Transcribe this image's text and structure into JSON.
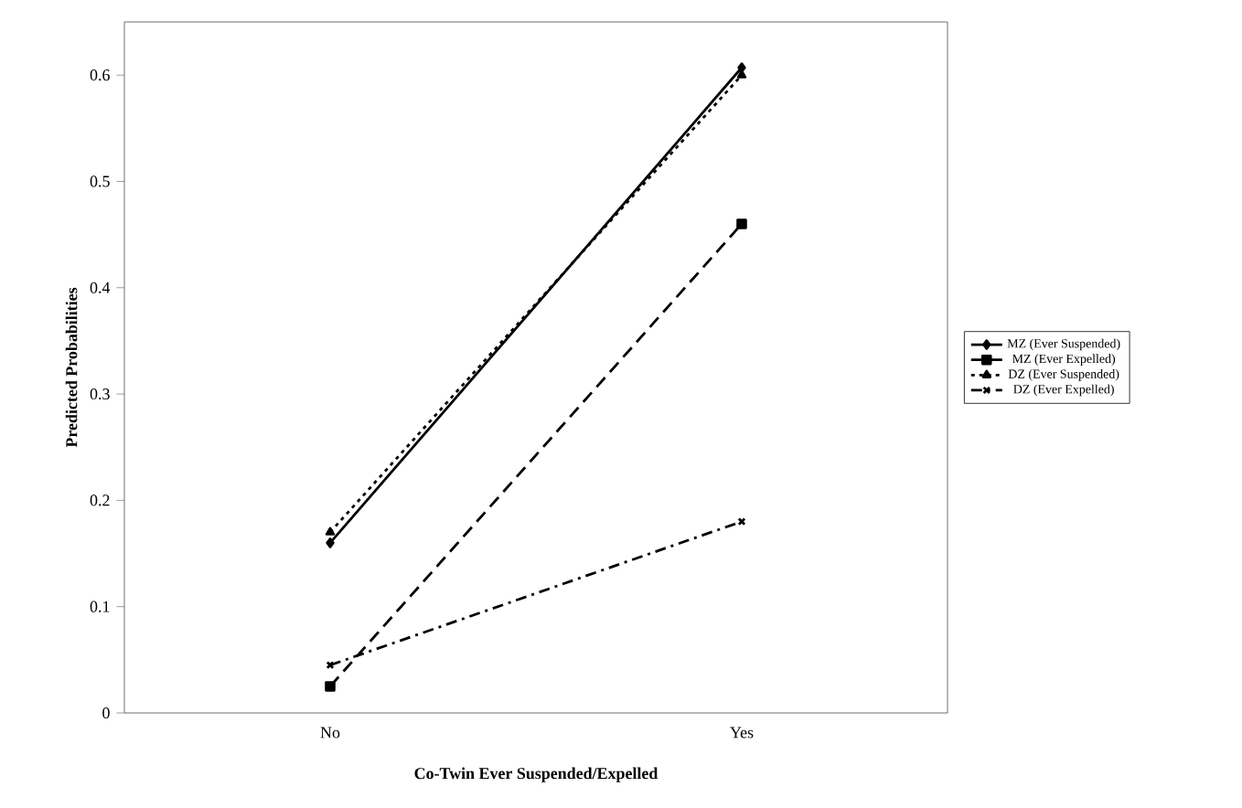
{
  "chart_data": {
    "type": "line",
    "xlabel": "Co-Twin Ever Suspended/Expelled",
    "ylabel": "Predicted Probabilities",
    "categories": [
      "No",
      "Yes"
    ],
    "series": [
      {
        "name": "MZ (Ever Suspended)",
        "color": "#000000",
        "values": [
          0.16,
          0.607
        ],
        "marker": "diamond",
        "line_style": "solid"
      },
      {
        "name": "MZ (Ever Expelled)",
        "color": "#000000",
        "values": [
          0.025,
          0.46
        ],
        "marker": "square",
        "line_style": "dashed"
      },
      {
        "name": "DZ (Ever Suspended)",
        "color": "#000000",
        "values": [
          0.17,
          0.6
        ],
        "marker": "triangle",
        "line_style": "dotted"
      },
      {
        "name": "DZ (Ever Expelled)",
        "color": "#000000",
        "values": [
          0.045,
          0.18
        ],
        "marker": "cross",
        "line_style": "dashdot"
      }
    ],
    "ylim": [
      0,
      0.65
    ],
    "yticks": [
      0,
      0.1,
      0.2,
      0.3,
      0.4,
      0.5,
      0.6
    ],
    "grid": false,
    "legend": "right"
  }
}
